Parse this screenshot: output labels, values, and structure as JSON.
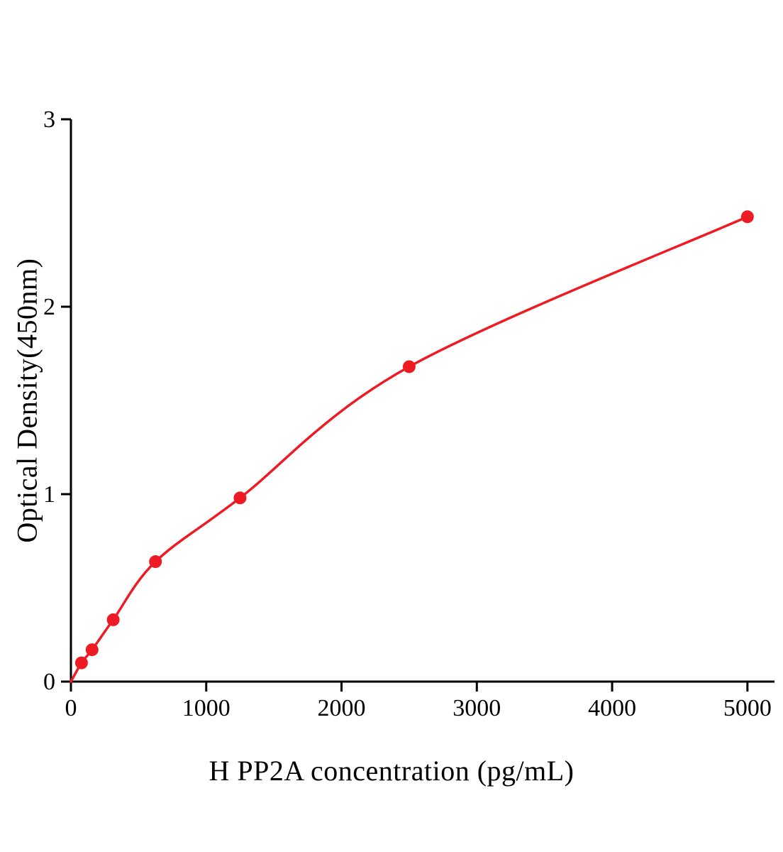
{
  "chart_data": {
    "type": "line+scatter",
    "title": "",
    "xlabel": "H PP2A concentration (pg/mL)",
    "ylabel": "Optical Density(450nm)",
    "x": [
      0,
      78.1,
      156.3,
      312.5,
      625,
      1250,
      2500,
      5000
    ],
    "y": [
      0,
      0.1,
      0.17,
      0.33,
      0.64,
      0.98,
      1.68,
      2.48
    ],
    "show_marker": [
      false,
      true,
      true,
      true,
      true,
      true,
      true,
      true
    ],
    "xticks": [
      0,
      1000,
      2000,
      3000,
      4000,
      5000
    ],
    "yticks": [
      0,
      1,
      2,
      3
    ],
    "xlim": [
      0,
      5200
    ],
    "ylim": [
      0,
      3
    ],
    "grid": false,
    "legend": "none",
    "line_color": "#ed1c24",
    "marker_color": "#ed1c24",
    "axis_color": "#000000"
  }
}
